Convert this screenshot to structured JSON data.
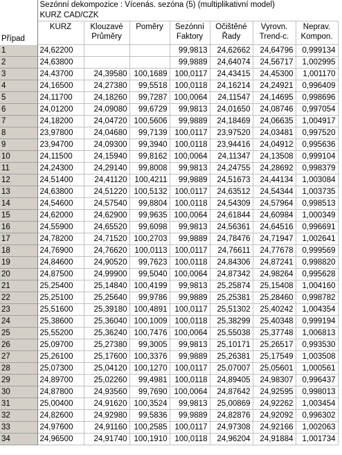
{
  "sheet": {
    "title": "Sezónní dekompozice : Vícenás. sezóna (5) (multiplikativní model)",
    "subtitle": "KURZ CAD/CZK",
    "row_header_label": "Případ",
    "columns": [
      {
        "line1": "KURZ",
        "line2": ""
      },
      {
        "line1": "Klouzavé",
        "line2": "Průměry"
      },
      {
        "line1": "Poměry",
        "line2": ""
      },
      {
        "line1": "Sezónní",
        "line2": "Faktory"
      },
      {
        "line1": "Očištěné",
        "line2": "Řady"
      },
      {
        "line1": "Vyrovn.",
        "line2": "Trend-c."
      },
      {
        "line1": "Neprav.",
        "line2": "Kompon."
      }
    ],
    "rows": [
      [
        "1",
        "24,62200",
        "",
        "",
        "99,9813",
        "24,62662",
        "24,64796",
        "0,999134"
      ],
      [
        "2",
        "24,63800",
        "",
        "",
        "99,9889",
        "24,64074",
        "24,56717",
        "1,002995"
      ],
      [
        "3",
        "24,43700",
        "24,39580",
        "100,1689",
        "100,0117",
        "24,43415",
        "24,45300",
        "1,001170"
      ],
      [
        "4",
        "24,16500",
        "24,27380",
        "99,5518",
        "100,0118",
        "24,16214",
        "24,24921",
        "0,996409"
      ],
      [
        "5",
        "24,11700",
        "24,18260",
        "99,7287",
        "100,0064",
        "24,11547",
        "24,14695",
        "0,998696"
      ],
      [
        "6",
        "24,01200",
        "24,09080",
        "99,6729",
        "99,9813",
        "24,01650",
        "24,08746",
        "0,997054"
      ],
      [
        "7",
        "24,18200",
        "24,04720",
        "100,5606",
        "99,9889",
        "24,18469",
        "24,06635",
        "1,004917"
      ],
      [
        "8",
        "23,97800",
        "24,04680",
        "99,7139",
        "100,0117",
        "23,97520",
        "24,03481",
        "0,997520"
      ],
      [
        "9",
        "23,94700",
        "24,09300",
        "99,3940",
        "100,0118",
        "23,94416",
        "24,04912",
        "0,995636"
      ],
      [
        "10",
        "24,11500",
        "24,15940",
        "99,8162",
        "100,0064",
        "24,11347",
        "24,13508",
        "0,999104"
      ],
      [
        "11",
        "24,24300",
        "24,29140",
        "99,8008",
        "99,9813",
        "24,24755",
        "24,28692",
        "0,998379"
      ],
      [
        "12",
        "24,51400",
        "24,41120",
        "100,4211",
        "99,9889",
        "24,51673",
        "24,44134",
        "1,003084"
      ],
      [
        "13",
        "24,63800",
        "24,51220",
        "100,5132",
        "100,0117",
        "24,63512",
        "24,54344",
        "1,003735"
      ],
      [
        "14",
        "24,54600",
        "24,57540",
        "99,8804",
        "100,0118",
        "24,54309",
        "24,57964",
        "0,998513"
      ],
      [
        "15",
        "24,62000",
        "24,62900",
        "99,9635",
        "100,0064",
        "24,61844",
        "24,60984",
        "1,000349"
      ],
      [
        "16",
        "24,55900",
        "24,65520",
        "99,6098",
        "99,9813",
        "24,56361",
        "24,64516",
        "0,996691"
      ],
      [
        "17",
        "24,78200",
        "24,71520",
        "100,2703",
        "99,9889",
        "24,78476",
        "24,71947",
        "1,002641"
      ],
      [
        "18",
        "24,76900",
        "24,76620",
        "100,0113",
        "100,0117",
        "24,76611",
        "24,77678",
        "0,999569"
      ],
      [
        "19",
        "24,84600",
        "24,90520",
        "99,7623",
        "100,0118",
        "24,84306",
        "24,87241",
        "0,998820"
      ],
      [
        "20",
        "24,87500",
        "24,99900",
        "99,5040",
        "100,0064",
        "24,87342",
        "24,98264",
        "0,995628"
      ],
      [
        "21",
        "25,25400",
        "25,14840",
        "100,4199",
        "99,9813",
        "25,25874",
        "25,15408",
        "1,004160"
      ],
      [
        "22",
        "25,25100",
        "25,25640",
        "99,9786",
        "99,9889",
        "25,25381",
        "25,28460",
        "0,998782"
      ],
      [
        "23",
        "25,51600",
        "25,39180",
        "100,4891",
        "100,0117",
        "25,51302",
        "25,40242",
        "1,004354"
      ],
      [
        "24",
        "25,38600",
        "25,36040",
        "100,1009",
        "100,0118",
        "25,38299",
        "25,40348",
        "0,999194"
      ],
      [
        "25",
        "25,55200",
        "25,36240",
        "100,7476",
        "100,0064",
        "25,55038",
        "25,37748",
        "1,006813"
      ],
      [
        "26",
        "25,09700",
        "25,27380",
        "99,3005",
        "99,9813",
        "25,10171",
        "25,26517",
        "0,993530"
      ],
      [
        "27",
        "25,26100",
        "25,17600",
        "100,3376",
        "99,9889",
        "25,26381",
        "25,17549",
        "1,003508"
      ],
      [
        "28",
        "25,07300",
        "25,04120",
        "100,1270",
        "100,0117",
        "25,07007",
        "25,05601",
        "1,000561"
      ],
      [
        "29",
        "24,89700",
        "25,02260",
        "99,4981",
        "100,0118",
        "24,89405",
        "24,98307",
        "0,996437"
      ],
      [
        "30",
        "24,87800",
        "24,93560",
        "99,7690",
        "100,0064",
        "24,87642",
        "24,92595",
        "0,998013"
      ],
      [
        "31",
        "25,00400",
        "24,91620",
        "100,3524",
        "99,9813",
        "25,00869",
        "24,92262",
        "1,003454"
      ],
      [
        "32",
        "24,82600",
        "24,92980",
        "99,5836",
        "99,9889",
        "24,82876",
        "24,92092",
        "0,996302"
      ],
      [
        "33",
        "24,97600",
        "24,91160",
        "100,2585",
        "100,0117",
        "24,97308",
        "24,92166",
        "1,002063"
      ],
      [
        "34",
        "24,96500",
        "24,91740",
        "100,1910",
        "100,0118",
        "24,96204",
        "24,91884",
        "1,001734"
      ]
    ]
  }
}
